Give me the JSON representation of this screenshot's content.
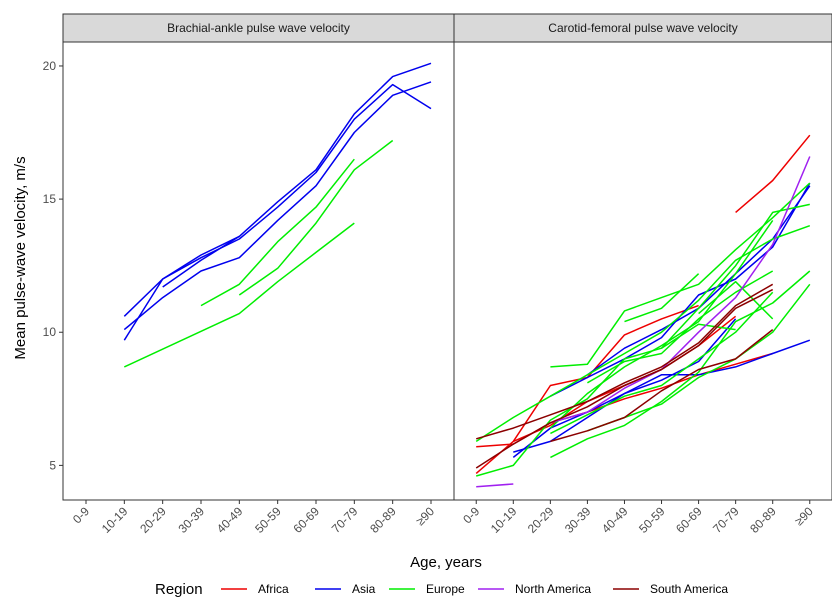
{
  "chart_data": {
    "type": "line",
    "ylabel": "Mean pulse-wave velocity, m/s",
    "xlabel": "Age, years",
    "categories": [
      "0-9",
      "10-19",
      "20-29",
      "30-39",
      "40-49",
      "50-59",
      "60-69",
      "70-79",
      "80-89",
      "≥90"
    ],
    "ylim": [
      3.7,
      20.9
    ],
    "yticks": [
      5,
      10,
      15,
      20
    ],
    "grid": false,
    "legend": {
      "title": "Region",
      "position": "bottom",
      "items": [
        {
          "name": "Africa",
          "color": "#ee0000"
        },
        {
          "name": "Asia",
          "color": "#0000ee"
        },
        {
          "name": "Europe",
          "color": "#00ee00"
        },
        {
          "name": "North America",
          "color": "#a020f0"
        },
        {
          "name": "South America",
          "color": "#8b0000"
        }
      ]
    },
    "panels": [
      {
        "title": "Brachial-ankle pulse wave velocity",
        "series": [
          {
            "region": "Asia",
            "x": [
              "10-19",
              "20-29",
              "30-39",
              "40-49",
              "50-59",
              "60-69",
              "70-79",
              "80-89",
              "≥90"
            ],
            "y": [
              10.6,
              12.0,
              12.9,
              13.6,
              14.9,
              16.1,
              18.2,
              19.6,
              20.1
            ]
          },
          {
            "region": "Asia",
            "x": [
              "10-19",
              "20-29",
              "30-39",
              "40-49",
              "50-59",
              "60-69",
              "70-79",
              "80-89",
              "≥90"
            ],
            "y": [
              9.7,
              12.0,
              12.8,
              13.5,
              14.7,
              16.0,
              18.0,
              19.3,
              18.4
            ]
          },
          {
            "region": "Asia",
            "x": [
              "10-19",
              "20-29",
              "30-39",
              "40-49",
              "50-59",
              "60-69",
              "70-79",
              "80-89",
              "≥90"
            ],
            "y": [
              10.1,
              11.3,
              12.3,
              12.8,
              14.2,
              15.5,
              17.5,
              18.9,
              19.4
            ]
          },
          {
            "region": "Asia",
            "x": [
              "20-29",
              "30-39",
              "40-49"
            ],
            "y": [
              11.7,
              12.7,
              13.6
            ]
          },
          {
            "region": "Europe",
            "x": [
              "10-19",
              "40-49",
              "50-59",
              "60-69",
              "70-79"
            ],
            "y": [
              8.7,
              10.7,
              11.9,
              13.0,
              14.1
            ]
          },
          {
            "region": "Europe",
            "x": [
              "30-39",
              "40-49",
              "50-59",
              "60-69",
              "70-79"
            ],
            "y": [
              11.0,
              11.8,
              13.4,
              14.7,
              16.5
            ]
          },
          {
            "region": "Europe",
            "x": [
              "40-49",
              "50-59",
              "60-69",
              "70-79",
              "80-89"
            ],
            "y": [
              11.4,
              12.4,
              14.1,
              16.1,
              17.2
            ]
          }
        ]
      },
      {
        "title": "Carotid-femoral pulse wave velocity",
        "series": [
          {
            "region": "Africa",
            "x": [
              "0-9",
              "10-19",
              "20-29",
              "30-39",
              "40-49",
              "50-59",
              "60-69"
            ],
            "y": [
              4.7,
              5.9,
              8.0,
              8.3,
              9.9,
              10.5,
              11.0
            ]
          },
          {
            "region": "Africa",
            "x": [
              "0-9",
              "10-19",
              "20-29",
              "30-39",
              "40-49",
              "50-59",
              "60-69",
              "70-79",
              "80-89"
            ],
            "y": [
              5.7,
              5.8,
              6.6,
              7.0,
              7.5,
              7.9,
              8.4,
              8.8,
              9.2
            ]
          },
          {
            "region": "Africa",
            "x": [
              "70-79",
              "80-89",
              "≥90"
            ],
            "y": [
              14.5,
              15.7,
              17.4
            ]
          },
          {
            "region": "Africa",
            "x": [
              "10-19",
              "20-29",
              "30-39",
              "40-49",
              "50-59",
              "60-69",
              "70-79"
            ],
            "y": [
              5.9,
              6.5,
              7.4,
              8.0,
              8.6,
              9.5,
              10.6
            ]
          },
          {
            "region": "Asia",
            "x": [
              "10-19",
              "20-29",
              "30-39",
              "40-49",
              "50-59",
              "60-69",
              "70-79",
              "80-89",
              "≥90"
            ],
            "y": [
              5.5,
              5.9,
              6.8,
              7.7,
              8.4,
              8.4,
              8.7,
              9.2,
              9.7
            ]
          },
          {
            "region": "Asia",
            "x": [
              "20-29",
              "30-39",
              "40-49",
              "50-59",
              "60-69",
              "70-79",
              "80-89",
              "≥90"
            ],
            "y": [
              7.6,
              8.3,
              9.0,
              9.8,
              11.4,
              12.0,
              13.2,
              15.6
            ]
          },
          {
            "region": "Asia",
            "x": [
              "10-19",
              "20-29",
              "30-39",
              "40-49",
              "50-59",
              "60-69",
              "70-79"
            ],
            "y": [
              5.3,
              6.4,
              7.0,
              7.7,
              8.2,
              8.9,
              10.5
            ]
          },
          {
            "region": "Asia",
            "x": [
              "30-39",
              "40-49",
              "50-59",
              "60-69",
              "70-79",
              "80-89",
              "≥90"
            ],
            "y": [
              8.4,
              9.4,
              10.1,
              10.9,
              12.2,
              13.5,
              15.5
            ]
          },
          {
            "region": "Europe",
            "x": [
              "0-9",
              "10-19",
              "20-29",
              "30-39",
              "40-49",
              "50-59",
              "60-69",
              "70-79",
              "80-89",
              "≥90"
            ],
            "y": [
              4.6,
              5.0,
              6.7,
              7.5,
              9.0,
              9.4,
              10.9,
              12.5,
              14.5,
              14.8
            ]
          },
          {
            "region": "Europe",
            "x": [
              "0-9",
              "10-19",
              "20-29",
              "30-39",
              "40-49",
              "50-59",
              "60-69",
              "70-79",
              "80-89",
              "≥90"
            ],
            "y": [
              5.9,
              6.8,
              7.6,
              8.4,
              9.2,
              10.0,
              11.2,
              12.7,
              13.5,
              14.0
            ]
          },
          {
            "region": "Europe",
            "x": [
              "20-29",
              "30-39",
              "40-49",
              "50-59",
              "60-69",
              "70-79",
              "80-89",
              "≥90"
            ],
            "y": [
              5.3,
              6.0,
              6.5,
              7.4,
              8.5,
              10.4,
              11.1,
              12.3
            ]
          },
          {
            "region": "Europe",
            "x": [
              "20-29",
              "30-39",
              "40-49",
              "50-59",
              "60-69",
              "70-79",
              "80-89",
              "≥90"
            ],
            "y": [
              8.7,
              8.8,
              10.8,
              11.3,
              11.8,
              13.1,
              14.3,
              15.6
            ]
          },
          {
            "region": "Europe",
            "x": [
              "30-39",
              "40-49",
              "50-59",
              "60-69",
              "70-79",
              "80-89",
              "≥90"
            ],
            "y": [
              6.3,
              6.8,
              7.3,
              8.3,
              9.0,
              10.0,
              11.8
            ]
          },
          {
            "region": "Europe",
            "x": [
              "40-49",
              "50-59",
              "60-69"
            ],
            "y": [
              10.4,
              10.9,
              12.2
            ]
          },
          {
            "region": "Europe",
            "x": [
              "20-29",
              "30-39",
              "40-49",
              "50-59",
              "60-69",
              "70-79",
              "80-89"
            ],
            "y": [
              6.4,
              7.7,
              8.7,
              9.5,
              10.4,
              12.2,
              14.2
            ]
          },
          {
            "region": "Europe",
            "x": [
              "30-39",
              "40-49",
              "50-59",
              "60-69",
              "70-79",
              "80-89"
            ],
            "y": [
              8.1,
              8.9,
              9.2,
              10.5,
              11.5,
              12.3
            ]
          },
          {
            "region": "Europe",
            "x": [
              "50-59",
              "60-69",
              "70-79"
            ],
            "y": [
              9.4,
              10.3,
              10.1
            ]
          },
          {
            "region": "Europe",
            "x": [
              "60-69",
              "70-79",
              "80-89"
            ],
            "y": [
              10.7,
              11.9,
              10.5
            ]
          },
          {
            "region": "Europe",
            "x": [
              "20-29",
              "30-39",
              "40-49",
              "50-59",
              "60-69",
              "70-79",
              "80-89"
            ],
            "y": [
              6.2,
              6.9,
              7.6,
              8.0,
              9.0,
              10.0,
              11.5
            ]
          },
          {
            "region": "North America",
            "x": [
              "0-9",
              "10-19"
            ],
            "y": [
              4.2,
              4.3
            ]
          },
          {
            "region": "North America",
            "x": [
              "20-29",
              "30-39",
              "40-49",
              "50-59",
              "60-69",
              "70-79",
              "80-89",
              "≥90"
            ],
            "y": [
              6.6,
              7.0,
              7.9,
              8.6,
              10.0,
              11.3,
              13.3,
              16.6
            ]
          },
          {
            "region": "South America",
            "x": [
              "0-9",
              "10-19",
              "20-29",
              "30-39",
              "40-49",
              "50-59",
              "60-69",
              "70-79",
              "80-89"
            ],
            "y": [
              6.0,
              6.4,
              6.9,
              7.4,
              8.1,
              8.7,
              9.6,
              11.0,
              11.8
            ]
          },
          {
            "region": "South America",
            "x": [
              "0-9",
              "10-19",
              "20-29",
              "30-39",
              "40-49",
              "50-59",
              "60-69",
              "70-79",
              "80-89"
            ],
            "y": [
              4.9,
              5.8,
              6.6,
              7.2,
              8.0,
              8.6,
              9.5,
              10.9,
              11.6
            ]
          },
          {
            "region": "South America",
            "x": [
              "20-29",
              "30-39",
              "40-49",
              "50-59",
              "60-69",
              "70-79",
              "80-89"
            ],
            "y": [
              5.9,
              6.3,
              6.8,
              7.8,
              8.6,
              9.0,
              10.1
            ]
          }
        ]
      }
    ]
  }
}
